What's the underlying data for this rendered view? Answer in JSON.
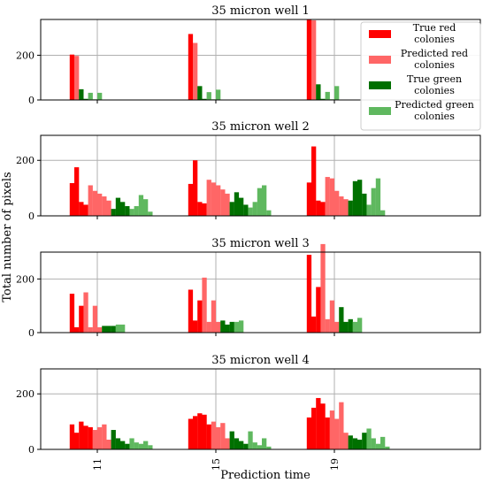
{
  "figure": {
    "xlabel": "Prediction time",
    "ylabel": "Total number of pixels"
  },
  "colors": {
    "true_red": "#ff0000",
    "pred_red": "#ff6666",
    "true_green": "#007000",
    "pred_green": "#5fb85f",
    "grid": "#b0b0b0"
  },
  "chart_data": [
    {
      "type": "bar",
      "title": "35 micron well 1",
      "categories": [
        "11",
        "15",
        "19"
      ],
      "ylim": [
        0,
        360
      ],
      "yticks": [
        0,
        200
      ],
      "grid": true,
      "legend": "top-right",
      "series": [
        {
          "name": "True red colonies",
          "values": [
            [
              203
            ],
            [
              295
            ],
            [
              358
            ]
          ]
        },
        {
          "name": "Predicted red colonies",
          "values": [
            [
              197
            ],
            [
              255
            ],
            [
              356
            ]
          ]
        },
        {
          "name": "True green colonies",
          "values": [
            [
              48,
              5
            ],
            [
              62,
              5
            ],
            [
              70,
              5
            ]
          ]
        },
        {
          "name": "Predicted green colonies",
          "values": [
            [
              32,
              3,
              32
            ],
            [
              35,
              3,
              46
            ],
            [
              36,
              3,
              62
            ]
          ]
        }
      ]
    },
    {
      "type": "bar",
      "title": "35 micron well 2",
      "categories": [
        "11",
        "15",
        "19"
      ],
      "ylim": [
        0,
        290
      ],
      "yticks": [
        0,
        200
      ],
      "grid": true,
      "series": [
        {
          "name": "True red colonies",
          "values": [
            [
              118,
              175,
              50,
              40
            ],
            [
              115,
              200,
              50,
              45
            ],
            [
              120,
              250,
              55,
              50
            ]
          ]
        },
        {
          "name": "Predicted red colonies",
          "values": [
            [
              110,
              90,
              80,
              70,
              55
            ],
            [
              130,
              120,
              110,
              95,
              80
            ],
            [
              140,
              135,
              90,
              70,
              60
            ]
          ]
        },
        {
          "name": "True green colonies",
          "values": [
            [
              25,
              65,
              50,
              35
            ],
            [
              50,
              85,
              65,
              40
            ],
            [
              55,
              125,
              130,
              80
            ]
          ]
        },
        {
          "name": "Predicted green colonies",
          "values": [
            [
              25,
              35,
              75,
              60,
              15
            ],
            [
              30,
              50,
              100,
              110,
              20
            ],
            [
              40,
              100,
              135,
              20
            ]
          ]
        }
      ]
    },
    {
      "type": "bar",
      "title": "35 micron well 3",
      "categories": [
        "11",
        "15",
        "19"
      ],
      "ylim": [
        0,
        300
      ],
      "yticks": [
        0,
        200
      ],
      "grid": true,
      "series": [
        {
          "name": "True red colonies",
          "values": [
            [
              145,
              20,
              100
            ],
            [
              160,
              45,
              120
            ],
            [
              290,
              60,
              170
            ]
          ]
        },
        {
          "name": "Predicted red colonies",
          "values": [
            [
              150,
              20,
              100,
              20
            ],
            [
              205,
              40,
              120,
              40
            ],
            [
              330,
              50,
              120,
              40
            ]
          ]
        },
        {
          "name": "True green colonies",
          "values": [
            [
              25,
              25,
              25
            ],
            [
              45,
              30,
              40
            ],
            [
              95,
              40,
              50
            ]
          ]
        },
        {
          "name": "Predicted green colonies",
          "values": [
            [
              30,
              30
            ],
            [
              40,
              45
            ],
            [
              40,
              55
            ]
          ]
        }
      ]
    },
    {
      "type": "bar",
      "title": "35 micron well 4",
      "categories": [
        "11",
        "15",
        "19"
      ],
      "ylim": [
        0,
        290
      ],
      "yticks": [
        0,
        200
      ],
      "grid": true,
      "series": [
        {
          "name": "True red colonies",
          "values": [
            [
              90,
              60,
              100,
              85,
              80
            ],
            [
              110,
              120,
              130,
              125,
              90
            ],
            [
              115,
              150,
              185,
              165,
              115
            ]
          ]
        },
        {
          "name": "Predicted red colonies",
          "values": [
            [
              70,
              80,
              90,
              35
            ],
            [
              100,
              80,
              95,
              40
            ],
            [
              140,
              110,
              170,
              60
            ]
          ]
        },
        {
          "name": "True green colonies",
          "values": [
            [
              70,
              40,
              30,
              20
            ],
            [
              65,
              40,
              30,
              20
            ],
            [
              50,
              40,
              35,
              60
            ]
          ]
        },
        {
          "name": "Predicted green colonies",
          "values": [
            [
              40,
              25,
              20,
              30,
              15
            ],
            [
              65,
              25,
              15,
              40,
              10
            ],
            [
              75,
              40,
              20,
              45,
              10
            ]
          ]
        }
      ]
    }
  ]
}
